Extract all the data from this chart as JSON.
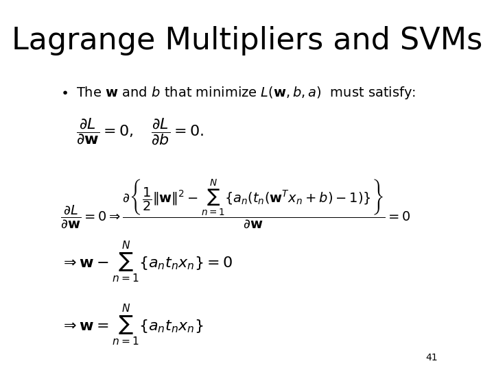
{
  "title": "Lagrange Multipliers and SVMs",
  "background_color": "#ffffff",
  "text_color": "#000000",
  "slide_number": "41",
  "title_fontsize": 32,
  "body_fontsize": 14,
  "math_fontsize": 15
}
